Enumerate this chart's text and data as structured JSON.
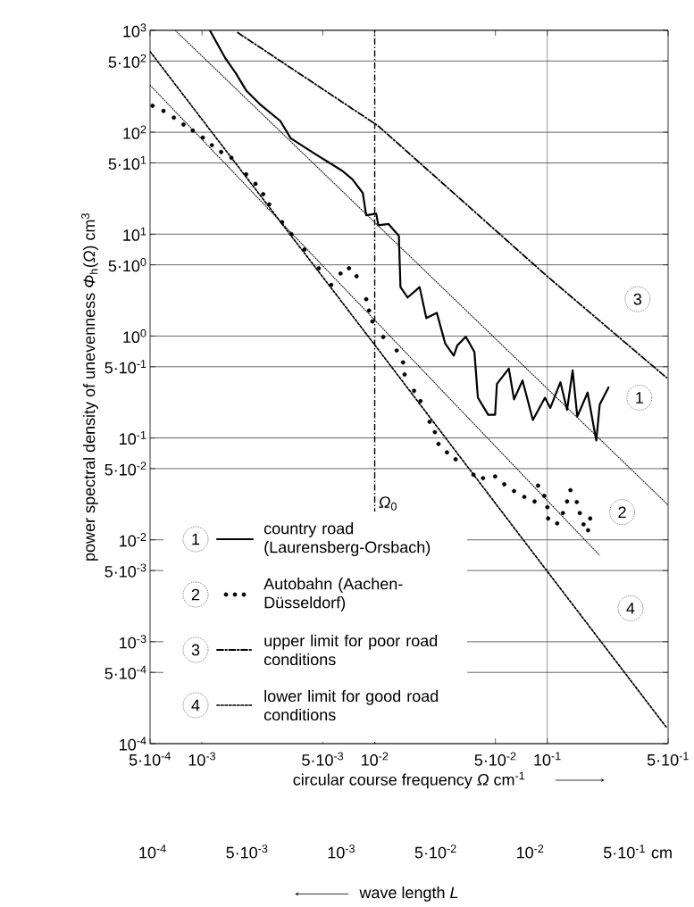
{
  "chart_data": {
    "type": "line",
    "xlabel": "circular course frequency *Ω* cm$^{-1}$",
    "ylabel": "power spectral density of unevenness *Φ*$_{h}$(*Ω*) cm$^{3}$",
    "x2label": "wave length *L*",
    "log": "xy",
    "grid": "y",
    "legend": "bottom left",
    "xlim": [
      0.0005,
      0.5
    ],
    "ylim": [
      0.0001,
      1000
    ],
    "xticks": [
      {
        "value": 0.0005,
        "label": "5·10$^{-4}$"
      },
      {
        "value": 0.001,
        "label": "10$^{-3}$"
      },
      {
        "value": 0.005,
        "label": "5·10$^{-3}$"
      },
      {
        "value": 0.01,
        "label": "10$^{-2}$"
      },
      {
        "value": 0.05,
        "label": "5·10$^{-2}$"
      },
      {
        "value": 0.1,
        "label": "10$^{-1}$"
      },
      {
        "value": 0.5,
        "label": "5·10$^{-1}$"
      }
    ],
    "yticks": [
      {
        "value": 1000,
        "label": "10$^{3}$"
      },
      {
        "value": 500,
        "label": "5·10$^{2}$"
      },
      {
        "value": 100,
        "label": "10$^{2}$"
      },
      {
        "value": 50,
        "label": "5·10$^{1}$"
      },
      {
        "value": 10,
        "label": "10$^{1}$"
      },
      {
        "value": 5,
        "label": "5·10$^{0}$"
      },
      {
        "value": 1,
        "label": "10$^{0}$"
      },
      {
        "value": 0.5,
        "label": "5·10$^{-1}$"
      },
      {
        "value": 0.1,
        "label": "10$^{-1}$"
      },
      {
        "value": 0.05,
        "label": "5·10$^{-2}$"
      },
      {
        "value": 0.01,
        "label": "10$^{-2}$"
      },
      {
        "value": 0.005,
        "label": "5·10$^{-3}$"
      },
      {
        "value": 0.001,
        "label": "10$^{-3}$"
      },
      {
        "value": 0.0005,
        "label": "5·10$^{-4}$"
      },
      {
        "value": 0.0001,
        "label": "10$^{-4}$"
      }
    ],
    "series": [
      {
        "name": "country road (Laurensberg-Orsbach)",
        "color": "#000000",
        "line_style": "solid",
        "marker": "none",
        "x": [
          0.00111,
          0.00136,
          0.00157,
          0.0018,
          0.00216,
          0.00284,
          0.00326,
          0.00449,
          0.00648,
          0.00743,
          0.00853,
          0.00893,
          0.0102,
          0.0105,
          0.012,
          0.0138,
          0.0141,
          0.0155,
          0.0182,
          0.0199,
          0.0229,
          0.0256,
          0.0287,
          0.0301,
          0.0337,
          0.0378,
          0.0396,
          0.0454,
          0.0498,
          0.051,
          0.0598,
          0.0641,
          0.0718,
          0.0824,
          0.0968,
          0.104,
          0.119,
          0.13,
          0.14,
          0.149,
          0.171,
          0.184,
          0.192,
          0.201,
          0.226
        ],
        "values": [
          1000,
          537,
          379,
          258,
          189,
          129,
          87.3,
          61.7,
          41.9,
          34.5,
          25.3,
          15.3,
          15.9,
          12.2,
          12.6,
          9.62,
          3.02,
          2.39,
          3.02,
          1.5,
          1.69,
          0.843,
          0.643,
          0.81,
          0.984,
          0.697,
          0.248,
          0.169,
          0.169,
          0.338,
          0.479,
          0.239,
          0.366,
          0.15,
          0.248,
          0.197,
          0.352,
          0.189,
          0.461,
          0.162,
          0.279,
          0.139,
          0.0944,
          0.213,
          0.313
        ]
      },
      {
        "name": "Autobahn (Aachen-Düsseldorf)",
        "type": "scatter",
        "color": "#000000",
        "marker": "circle",
        "x": [
          0.000517,
          0.000598,
          0.000687,
          0.000781,
          0.000884,
          0.00101,
          0.00114,
          0.00129,
          0.00148,
          0.0018,
          0.00204,
          0.00226,
          0.00245,
          0.00291,
          0.00329,
          0.00392,
          0.00474,
          0.0056,
          0.00634,
          0.0071,
          0.00785,
          0.00893,
          0.00927,
          0.00969,
          0.0112,
          0.0134,
          0.0146,
          0.0149,
          0.0169,
          0.0184,
          0.0208,
          0.0223,
          0.0234,
          0.0262,
          0.0294,
          0.0373,
          0.0424,
          0.0498,
          0.0563,
          0.0641,
          0.0735,
          0.0843,
          0.0883,
          0.0958,
          0.1,
          0.101,
          0.114,
          0.123,
          0.13,
          0.136,
          0.148,
          0.154,
          0.162,
          0.172,
          0.177
        ],
        "values": [
          182,
          162,
          139,
          119,
          104,
          88.6,
          74.7,
          64,
          56.1,
          38.7,
          31.2,
          24.7,
          19.6,
          13.1,
          10,
          7.06,
          4.62,
          3.18,
          4.11,
          4.62,
          3.86,
          2.3,
          1.78,
          1.39,
          0.98,
          0.722,
          0.551,
          0.42,
          0.29,
          0.23,
          0.144,
          0.114,
          0.0874,
          0.0721,
          0.0617,
          0.0436,
          0.0403,
          0.0419,
          0.0351,
          0.0301,
          0.0264,
          0.0238,
          0.034,
          0.027,
          0.0209,
          0.0162,
          0.0145,
          0.0183,
          0.0238,
          0.0307,
          0.0235,
          0.0183,
          0.0142,
          0.0124,
          0.0162
        ]
      },
      {
        "name": "upper limit for poor road conditions",
        "color": "#000000",
        "line_style": "dashdot",
        "marker": "none",
        "x": [
          0.00161,
          0.0105,
          0.099,
          0.49
        ],
        "values": [
          950,
          115,
          3.9,
          0.39
        ]
      },
      {
        "name": "lower limit for good road conditions",
        "color": "#000000",
        "line_style": "dashed",
        "marker": "none",
        "x": [
          0.0005,
          0.0094,
          0.099,
          0.49
        ],
        "values": [
          620,
          0.94,
          0.005,
          0.000144
        ]
      },
      {
        "color": "#000000",
        "line_style": "dotted",
        "marker": "none",
        "x": [
          0.0007,
          0.5
        ],
        "values": [
          1000,
          0.022
        ]
      },
      {
        "color": "#000000",
        "line_style": "dotted",
        "marker": "none",
        "x": [
          0.0005,
          0.2
        ],
        "values": [
          290,
          0.0071
        ]
      }
    ],
    "ref_lines": [
      {
        "axis": "x",
        "value": 0.01,
        "label": "*Ω*$_{0}$",
        "line_style": "dashdot"
      },
      {
        "axis": "x",
        "value": 0.1,
        "line_style": "solid"
      }
    ],
    "annotations": [
      {
        "text": "1",
        "x": 0.341,
        "y": 0.248
      },
      {
        "text": "2",
        "x": 0.271,
        "y": 0.0187
      },
      {
        "text": "3",
        "x": 0.333,
        "y": 2.3
      },
      {
        "text": "4",
        "x": 0.303,
        "y": 0.00213
      },
      "10$^{-4}$",
      "5·10$^{-3}$",
      "10$^{-3}$",
      "5·10$^{-2}$",
      "10$^{-2}$",
      "5·10$^{-1}$ cm"
    ]
  }
}
